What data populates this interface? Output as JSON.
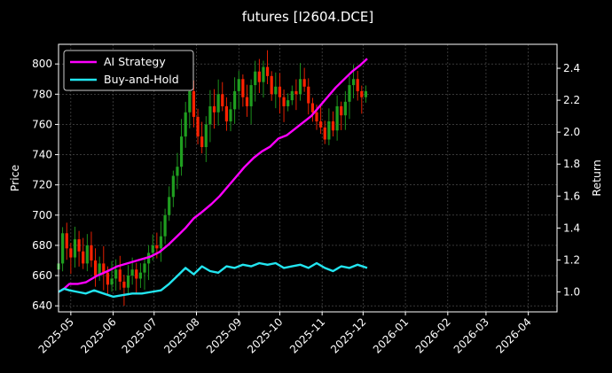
{
  "chart_data": {
    "type": "line",
    "title": "futures [I2604.DCE]",
    "xlabel": "",
    "ylabel": "Price",
    "y2label": "Return",
    "grid": true,
    "legend_position": "top-left",
    "x_ticks": [
      "2025-05",
      "2025-06",
      "2025-07",
      "2025-08",
      "2025-09",
      "2025-10",
      "2025-11",
      "2025-12",
      "2026-01",
      "2026-02",
      "2026-03",
      "2026-04"
    ],
    "xlim": [
      "2025-04-22",
      "2026-04-22"
    ],
    "ylim": [
      636,
      813
    ],
    "y_ticks": [
      640,
      660,
      680,
      700,
      720,
      740,
      760,
      780,
      800
    ],
    "y2lim": [
      0.875,
      2.55
    ],
    "y2_ticks": [
      "1.0",
      "1.2",
      "1.4",
      "1.6",
      "1.8",
      "2.0",
      "2.2",
      "2.4"
    ],
    "colors": {
      "ai": "#ff00ff",
      "bh": "#22e5f0",
      "up": "#1f9e1f",
      "down": "#ff2200",
      "grid": "#5a5a5a"
    },
    "series": [
      {
        "name": "AI Strategy",
        "axis": "right",
        "x": [
          "2025-04-22",
          "2025-04-26",
          "2025-04-30",
          "2025-05-06",
          "2025-05-12",
          "2025-05-20",
          "2025-05-28",
          "2025-06-04",
          "2025-06-12",
          "2025-06-20",
          "2025-06-28",
          "2025-07-05",
          "2025-07-12",
          "2025-07-18",
          "2025-07-24",
          "2025-07-30",
          "2025-08-05",
          "2025-08-12",
          "2025-08-18",
          "2025-08-24",
          "2025-08-30",
          "2025-09-05",
          "2025-09-12",
          "2025-09-18",
          "2025-09-24",
          "2025-09-30",
          "2025-10-06",
          "2025-10-12",
          "2025-10-18",
          "2025-10-24",
          "2025-10-30",
          "2025-11-05",
          "2025-11-11",
          "2025-11-17",
          "2025-11-23",
          "2025-11-29",
          "2025-12-04"
        ],
        "values": [
          1.0,
          1.02,
          1.05,
          1.05,
          1.06,
          1.1,
          1.13,
          1.16,
          1.18,
          1.2,
          1.22,
          1.25,
          1.3,
          1.35,
          1.4,
          1.46,
          1.5,
          1.55,
          1.6,
          1.66,
          1.72,
          1.78,
          1.84,
          1.88,
          1.91,
          1.96,
          1.98,
          2.02,
          2.06,
          2.1,
          2.16,
          2.22,
          2.28,
          2.33,
          2.38,
          2.42,
          2.46
        ]
      },
      {
        "name": "Buy-and-Hold",
        "axis": "right",
        "x": [
          "2025-04-22",
          "2025-04-26",
          "2025-04-30",
          "2025-05-06",
          "2025-05-12",
          "2025-05-18",
          "2025-05-25",
          "2025-06-01",
          "2025-06-08",
          "2025-06-15",
          "2025-06-22",
          "2025-06-29",
          "2025-07-06",
          "2025-07-12",
          "2025-07-18",
          "2025-07-24",
          "2025-07-30",
          "2025-08-05",
          "2025-08-11",
          "2025-08-17",
          "2025-08-23",
          "2025-08-29",
          "2025-09-04",
          "2025-09-10",
          "2025-09-16",
          "2025-09-22",
          "2025-09-28",
          "2025-10-04",
          "2025-10-10",
          "2025-10-16",
          "2025-10-22",
          "2025-10-28",
          "2025-11-03",
          "2025-11-09",
          "2025-11-15",
          "2025-11-21",
          "2025-11-27",
          "2025-12-04"
        ],
        "values": [
          1.0,
          1.02,
          1.01,
          1.0,
          0.99,
          1.01,
          0.99,
          0.97,
          0.98,
          0.99,
          0.99,
          1.0,
          1.01,
          1.05,
          1.1,
          1.15,
          1.11,
          1.16,
          1.13,
          1.12,
          1.16,
          1.15,
          1.17,
          1.16,
          1.18,
          1.17,
          1.18,
          1.15,
          1.16,
          1.17,
          1.15,
          1.18,
          1.15,
          1.13,
          1.16,
          1.15,
          1.17,
          1.15
        ]
      }
    ],
    "candles": {
      "x": [
        "2025-04-22",
        "2025-04-25",
        "2025-04-28",
        "2025-05-01",
        "2025-05-04",
        "2025-05-07",
        "2025-05-10",
        "2025-05-13",
        "2025-05-16",
        "2025-05-19",
        "2025-05-22",
        "2025-05-25",
        "2025-05-28",
        "2025-05-31",
        "2025-06-03",
        "2025-06-06",
        "2025-06-09",
        "2025-06-12",
        "2025-06-15",
        "2025-06-18",
        "2025-06-21",
        "2025-06-24",
        "2025-06-27",
        "2025-06-30",
        "2025-07-03",
        "2025-07-06",
        "2025-07-09",
        "2025-07-12",
        "2025-07-15",
        "2025-07-18",
        "2025-07-21",
        "2025-07-24",
        "2025-07-27",
        "2025-07-30",
        "2025-08-02",
        "2025-08-05",
        "2025-08-08",
        "2025-08-11",
        "2025-08-14",
        "2025-08-17",
        "2025-08-20",
        "2025-08-23",
        "2025-08-26",
        "2025-08-29",
        "2025-09-01",
        "2025-09-04",
        "2025-09-07",
        "2025-09-10",
        "2025-09-13",
        "2025-09-16",
        "2025-09-19",
        "2025-09-22",
        "2025-09-25",
        "2025-09-28",
        "2025-10-01",
        "2025-10-04",
        "2025-10-07",
        "2025-10-10",
        "2025-10-13",
        "2025-10-16",
        "2025-10-19",
        "2025-10-22",
        "2025-10-25",
        "2025-10-28",
        "2025-10-31",
        "2025-11-03",
        "2025-11-06",
        "2025-11-09",
        "2025-11-12",
        "2025-11-15",
        "2025-11-18",
        "2025-11-21",
        "2025-11-24",
        "2025-11-27",
        "2025-11-30",
        "2025-12-03"
      ],
      "close": [
        668,
        688,
        678,
        672,
        684,
        676,
        668,
        680,
        670,
        660,
        668,
        662,
        654,
        658,
        664,
        656,
        652,
        660,
        664,
        658,
        662,
        668,
        675,
        680,
        678,
        686,
        700,
        712,
        726,
        732,
        752,
        768,
        782,
        765,
        752,
        745,
        760,
        772,
        768,
        780,
        772,
        762,
        770,
        782,
        790,
        778,
        772,
        786,
        795,
        788,
        798,
        792,
        780,
        785,
        778,
        772,
        776,
        782,
        780,
        790,
        785,
        774,
        768,
        762,
        758,
        750,
        762,
        756,
        772,
        766,
        775,
        786,
        790,
        782,
        778,
        782
      ]
    }
  }
}
